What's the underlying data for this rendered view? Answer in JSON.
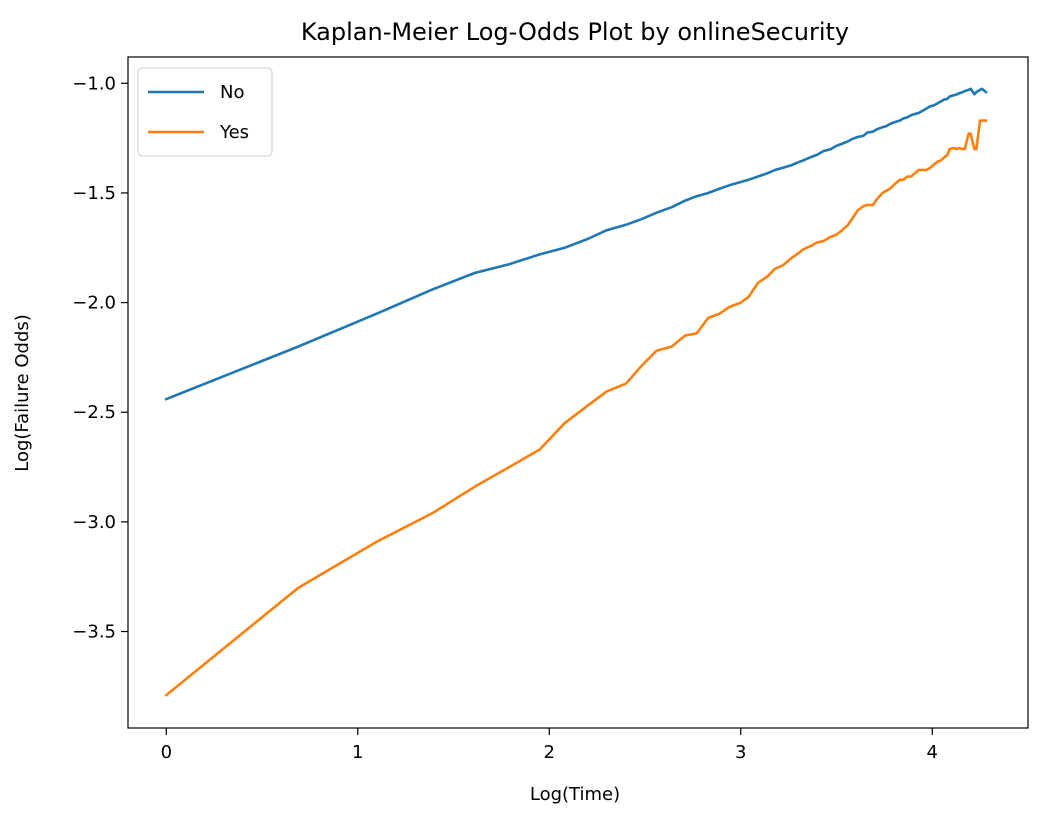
{
  "chart_data": {
    "type": "line",
    "title": "Kaplan-Meier Log-Odds Plot by onlineSecurity",
    "xlabel": "Log(Time)",
    "ylabel": "Log(Failure Odds)",
    "xlim": [
      -0.2,
      4.5
    ],
    "ylim": [
      -3.94,
      -0.88
    ],
    "xticks": [
      0,
      1,
      2,
      3,
      4
    ],
    "xtick_labels": [
      "0",
      "1",
      "2",
      "3",
      "4"
    ],
    "yticks": [
      -1.0,
      -1.5,
      -2.0,
      -2.5,
      -3.0,
      -3.5
    ],
    "ytick_labels": [
      "−1.0",
      "−1.5",
      "−2.0",
      "−2.5",
      "−3.0",
      "−3.5"
    ],
    "grid": false,
    "legend_position": "upper-left",
    "series": [
      {
        "name": "No",
        "color": "#1f77b4",
        "x": [
          0,
          0.69,
          1.1,
          1.39,
          1.61,
          1.79,
          1.95,
          2.08,
          2.2,
          2.3,
          2.4,
          2.48,
          2.56,
          2.64,
          2.71,
          2.77,
          2.83,
          2.89,
          2.94,
          3.0,
          3.04,
          3.09,
          3.14,
          3.18,
          3.22,
          3.26,
          3.3,
          3.33,
          3.37,
          3.4,
          3.43,
          3.47,
          3.5,
          3.53,
          3.56,
          3.58,
          3.61,
          3.64,
          3.66,
          3.69,
          3.71,
          3.74,
          3.76,
          3.78,
          3.81,
          3.83,
          3.85,
          3.87,
          3.89,
          3.91,
          3.93,
          3.95,
          3.97,
          3.99,
          4.01,
          4.03,
          4.04,
          4.06,
          4.08,
          4.09,
          4.11,
          4.13,
          4.14,
          4.16,
          4.17,
          4.19,
          4.2,
          4.22,
          4.23,
          4.25,
          4.26,
          4.28
        ],
        "values": [
          -2.44,
          -2.2,
          -2.05,
          -1.94,
          -1.865,
          -1.825,
          -1.78,
          -1.75,
          -1.71,
          -1.67,
          -1.645,
          -1.62,
          -1.59,
          -1.565,
          -1.535,
          -1.515,
          -1.5,
          -1.48,
          -1.465,
          -1.45,
          -1.44,
          -1.425,
          -1.41,
          -1.395,
          -1.385,
          -1.375,
          -1.36,
          -1.35,
          -1.335,
          -1.325,
          -1.31,
          -1.3,
          -1.285,
          -1.275,
          -1.265,
          -1.255,
          -1.245,
          -1.24,
          -1.225,
          -1.22,
          -1.21,
          -1.2,
          -1.195,
          -1.185,
          -1.175,
          -1.17,
          -1.16,
          -1.155,
          -1.145,
          -1.14,
          -1.135,
          -1.125,
          -1.115,
          -1.105,
          -1.1,
          -1.09,
          -1.085,
          -1.075,
          -1.07,
          -1.06,
          -1.055,
          -1.05,
          -1.045,
          -1.04,
          -1.035,
          -1.03,
          -1.025,
          -1.05,
          -1.04,
          -1.03,
          -1.025,
          -1.04
        ]
      },
      {
        "name": "Yes",
        "color": "#ff7f0e",
        "x": [
          0,
          0.69,
          1.1,
          1.39,
          1.61,
          1.79,
          1.95,
          2.08,
          2.2,
          2.3,
          2.4,
          2.48,
          2.56,
          2.64,
          2.71,
          2.77,
          2.83,
          2.89,
          2.94,
          3.0,
          3.04,
          3.09,
          3.14,
          3.18,
          3.22,
          3.26,
          3.3,
          3.33,
          3.37,
          3.4,
          3.43,
          3.47,
          3.5,
          3.53,
          3.56,
          3.58,
          3.61,
          3.64,
          3.66,
          3.69,
          3.71,
          3.74,
          3.76,
          3.78,
          3.81,
          3.83,
          3.85,
          3.87,
          3.89,
          3.91,
          3.93,
          3.95,
          3.97,
          3.99,
          4.01,
          4.03,
          4.04,
          4.06,
          4.08,
          4.09,
          4.11,
          4.13,
          4.14,
          4.16,
          4.17,
          4.19,
          4.2,
          4.22,
          4.23,
          4.25,
          4.26,
          4.28
        ],
        "values": [
          -3.79,
          -3.3,
          -3.09,
          -2.96,
          -2.84,
          -2.75,
          -2.67,
          -2.55,
          -2.47,
          -2.405,
          -2.37,
          -2.29,
          -2.22,
          -2.2,
          -2.15,
          -2.14,
          -2.07,
          -2.05,
          -2.02,
          -2.0,
          -1.975,
          -1.91,
          -1.88,
          -1.845,
          -1.83,
          -1.8,
          -1.775,
          -1.755,
          -1.74,
          -1.725,
          -1.72,
          -1.7,
          -1.69,
          -1.67,
          -1.645,
          -1.62,
          -1.58,
          -1.56,
          -1.555,
          -1.555,
          -1.53,
          -1.5,
          -1.49,
          -1.48,
          -1.455,
          -1.44,
          -1.44,
          -1.425,
          -1.425,
          -1.41,
          -1.395,
          -1.395,
          -1.395,
          -1.385,
          -1.37,
          -1.355,
          -1.355,
          -1.34,
          -1.325,
          -1.3,
          -1.295,
          -1.3,
          -1.295,
          -1.3,
          -1.3,
          -1.23,
          -1.23,
          -1.3,
          -1.3,
          -1.17,
          -1.17,
          -1.17
        ]
      }
    ]
  }
}
